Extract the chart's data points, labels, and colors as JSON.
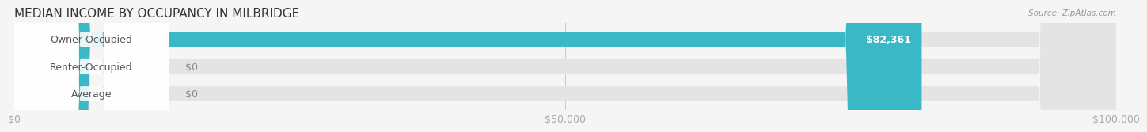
{
  "title": "MEDIAN INCOME BY OCCUPANCY IN MILBRIDGE",
  "source": "Source: ZipAtlas.com",
  "categories": [
    "Owner-Occupied",
    "Renter-Occupied",
    "Average"
  ],
  "values": [
    82361,
    0,
    0
  ],
  "bar_colors": [
    "#3ab8c5",
    "#c9a8d4",
    "#f5c89a"
  ],
  "bar_labels": [
    "$82,361",
    "$0",
    "$0"
  ],
  "background_color": "#f5f5f5",
  "bar_bg_color": "#e4e4e4",
  "xlim": [
    0,
    100000
  ],
  "xticks": [
    0,
    50000,
    100000
  ],
  "xtick_labels": [
    "$0",
    "$50,000",
    "$100,000"
  ],
  "label_fontsize": 9,
  "title_fontsize": 11,
  "bar_height": 0.55,
  "figsize": [
    14.06,
    1.96
  ]
}
